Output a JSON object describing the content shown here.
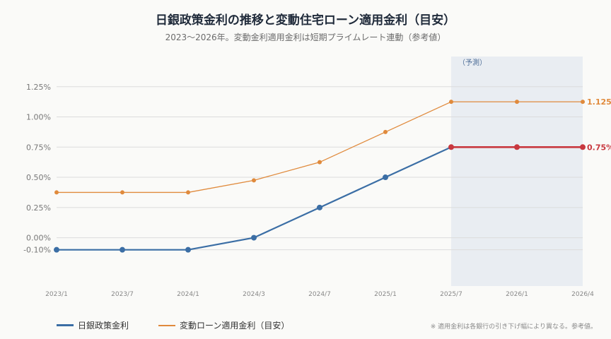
{
  "header": {
    "title": "日銀政策金利の推移と変動住宅ローン適用金利（目安）",
    "subtitle": "2023〜2026年。変動金利適用金利は短期プライムレート連動（参考値）"
  },
  "footnote": "※ 適用金利は各銀行の引き下げ幅により異なる。参考値。",
  "colors": {
    "policy": "#3b6ea5",
    "loan": "#e08a3c",
    "policy_forecast": "#c8383f",
    "forecast_band": "#e9edf2",
    "grid": "#dcdcdc"
  },
  "chart_data": {
    "type": "line",
    "x": [
      "2023/1",
      "2023/7",
      "2024/1",
      "2024/3",
      "2024/7",
      "2025/1",
      "2025/7",
      "2026/1",
      "2026/4"
    ],
    "series": [
      {
        "name": "日銀政策金利",
        "values": [
          -0.1,
          -0.1,
          -0.1,
          0.0,
          0.25,
          0.5,
          0.75,
          0.75,
          0.75
        ]
      },
      {
        "name": "変動ローン適用金利（目安）",
        "values": [
          0.375,
          0.375,
          0.375,
          0.475,
          0.625,
          0.875,
          1.125,
          1.125,
          1.125
        ]
      }
    ],
    "yticks": [
      "1.25%",
      "1.00%",
      "0.75%",
      "0.50%",
      "0.25%",
      "0.00%",
      "-0.10%"
    ],
    "ytick_values": [
      1.25,
      1.0,
      0.75,
      0.5,
      0.25,
      0.0,
      -0.1
    ],
    "ylim": [
      -0.4,
      1.5
    ],
    "forecast_region": {
      "label": "（予測）",
      "start": "2025/7",
      "end": "2026/4"
    },
    "end_labels": {
      "loan": "1.125",
      "policy": "0.75%"
    },
    "grid": true,
    "legend": "bottom-left"
  }
}
